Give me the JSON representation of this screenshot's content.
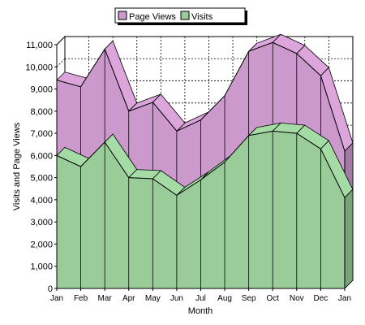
{
  "chart_data": {
    "type": "area",
    "stacked": false,
    "style": "3d",
    "categories": [
      "Jan",
      "Feb",
      "Mar",
      "Apr",
      "May",
      "Jun",
      "Jul",
      "Aug",
      "Sep",
      "Oct",
      "Nov",
      "Dec",
      "Jan"
    ],
    "series": [
      {
        "name": "Page Views",
        "color": "#cc99cc",
        "values": [
          9400,
          9100,
          10800,
          8000,
          8400,
          7100,
          7600,
          8700,
          10700,
          11100,
          10600,
          9600,
          6200
        ]
      },
      {
        "name": "Visits",
        "color": "#99cc99",
        "values": [
          6000,
          5500,
          6600,
          5000,
          4950,
          4200,
          4900,
          5700,
          6900,
          7100,
          7000,
          6300,
          4100
        ]
      }
    ],
    "xlabel": "Month",
    "ylabel": "Visits and Page Views",
    "ylim": [
      0,
      11000
    ],
    "yticks": [
      0,
      1000,
      2000,
      3000,
      4000,
      5000,
      6000,
      7000,
      8000,
      9000,
      10000,
      11000
    ],
    "ytick_labels": [
      "0",
      "1,000",
      "2,000",
      "3,000",
      "4,000",
      "5,000",
      "6,000",
      "7,000",
      "8,000",
      "9,000",
      "10,000",
      "11,000"
    ],
    "grid": true,
    "legend_position": "top-center"
  }
}
